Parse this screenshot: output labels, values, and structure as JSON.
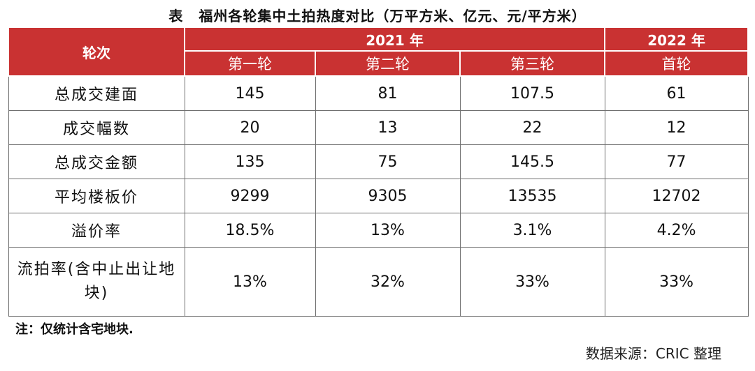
{
  "title": {
    "lead": "表",
    "text": "福州各轮集中土拍热度对比（万平方米、亿元、元/平方米）"
  },
  "table": {
    "corner_header": "轮次",
    "group_headers": [
      "2021 年",
      "2022 年"
    ],
    "round_headers": [
      "第一轮",
      "第二轮",
      "第三轮",
      "首轮"
    ],
    "rows": [
      {
        "label": "总成交建面",
        "values": [
          "145",
          "81",
          "107.5",
          "61"
        ]
      },
      {
        "label": "成交幅数",
        "values": [
          "20",
          "13",
          "22",
          "12"
        ]
      },
      {
        "label": "总成交金额",
        "values": [
          "135",
          "75",
          "145.5",
          "77"
        ]
      },
      {
        "label": "平均楼板价",
        "values": [
          "9299",
          "9305",
          "13535",
          "12702"
        ]
      },
      {
        "label": "溢价率",
        "values": [
          "18.5%",
          "13%",
          "3.1%",
          "4.2%"
        ]
      },
      {
        "label": "流拍率(含中止出让地块)",
        "values": [
          "13%",
          "32%",
          "33%",
          "33%"
        ]
      }
    ]
  },
  "note": "注：仅统计含宅地块.",
  "source": "数据来源：CRIC 整理",
  "colors": {
    "header_bg": "#c93232",
    "header_text": "#ffffff",
    "border": "#6f6f6f"
  }
}
